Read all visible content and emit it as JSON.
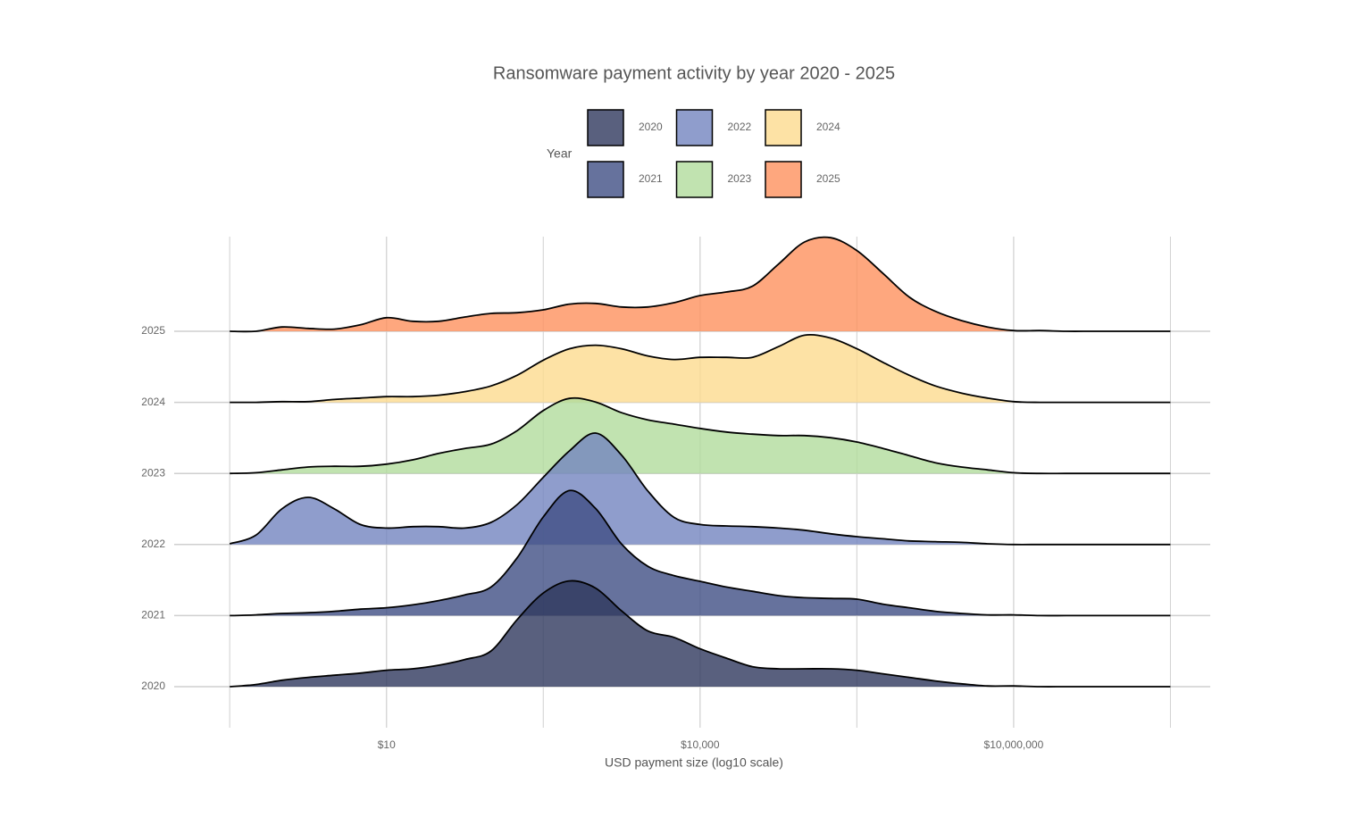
{
  "chart_data": {
    "type": "ridgeline",
    "title": "Ransomware payment activity by year 2020 - 2025",
    "xlabel": "USD payment size (log10 scale)",
    "legend_title": "Year",
    "x_log_scale": true,
    "grid": true,
    "opacity": 0.8,
    "xlim": [
      0.093,
      760000000
    ],
    "xticks": [
      {
        "value": 10,
        "label": "$10"
      },
      {
        "value": 10000,
        "label": "$10,000"
      },
      {
        "value": 10000000,
        "label": "$10,000,000"
      }
    ],
    "x_minor_ticks": [
      0.316,
      316,
      316228,
      316227766
    ],
    "categories": [
      "2020",
      "2021",
      "2022",
      "2023",
      "2024",
      "2025"
    ],
    "x": [
      0.316,
      0.562,
      1,
      1.78,
      3.16,
      5.62,
      10,
      17.8,
      31.6,
      56.2,
      100,
      178,
      316,
      562,
      1000,
      1778,
      3162,
      5623,
      10000,
      17783,
      31623,
      56234,
      100000,
      177828,
      316228,
      562341,
      1000000,
      1778279,
      3162278,
      5623413,
      10000000,
      17782794,
      31622777,
      56234133,
      100000000,
      177827941,
      316227766
    ],
    "series": [
      {
        "name": "2020",
        "color": "#2f385e",
        "values": [
          0,
          0.03,
          0.09,
          0.13,
          0.16,
          0.19,
          0.23,
          0.25,
          0.3,
          0.38,
          0.5,
          0.94,
          1.31,
          1.48,
          1.38,
          1.06,
          0.78,
          0.69,
          0.53,
          0.4,
          0.28,
          0.25,
          0.25,
          0.25,
          0.23,
          0.18,
          0.13,
          0.08,
          0.04,
          0.01,
          0.01,
          0,
          0,
          0,
          0,
          0,
          0
        ]
      },
      {
        "name": "2021",
        "color": "#404f85",
        "values": [
          0,
          0.01,
          0.03,
          0.04,
          0.06,
          0.09,
          0.11,
          0.15,
          0.21,
          0.29,
          0.4,
          0.81,
          1.38,
          1.75,
          1.5,
          1,
          0.69,
          0.56,
          0.48,
          0.4,
          0.34,
          0.28,
          0.25,
          0.24,
          0.23,
          0.16,
          0.11,
          0.06,
          0.03,
          0.01,
          0.01,
          0,
          0,
          0,
          0,
          0,
          0
        ]
      },
      {
        "name": "2022",
        "color": "#7385bf",
        "values": [
          0.01,
          0.13,
          0.5,
          0.66,
          0.5,
          0.28,
          0.23,
          0.25,
          0.25,
          0.23,
          0.31,
          0.56,
          0.94,
          1.31,
          1.56,
          1.25,
          0.75,
          0.38,
          0.28,
          0.26,
          0.25,
          0.23,
          0.2,
          0.15,
          0.11,
          0.08,
          0.05,
          0.04,
          0.03,
          0.01,
          0,
          0,
          0,
          0,
          0,
          0,
          0
        ]
      },
      {
        "name": "2023",
        "color": "#b2dc9c",
        "values": [
          0,
          0.01,
          0.05,
          0.09,
          0.1,
          0.1,
          0.13,
          0.19,
          0.28,
          0.35,
          0.41,
          0.6,
          0.88,
          1.05,
          1,
          0.85,
          0.75,
          0.69,
          0.63,
          0.58,
          0.55,
          0.53,
          0.53,
          0.5,
          0.44,
          0.35,
          0.25,
          0.15,
          0.09,
          0.05,
          0.01,
          0,
          0,
          0,
          0,
          0,
          0
        ]
      },
      {
        "name": "2024",
        "color": "#fddb8f",
        "values": [
          0,
          0,
          0.01,
          0.01,
          0.04,
          0.06,
          0.08,
          0.08,
          0.1,
          0.15,
          0.23,
          0.38,
          0.59,
          0.75,
          0.8,
          0.75,
          0.65,
          0.6,
          0.63,
          0.63,
          0.63,
          0.78,
          0.94,
          0.9,
          0.75,
          0.56,
          0.38,
          0.23,
          0.13,
          0.06,
          0.01,
          0,
          0,
          0,
          0,
          0,
          0
        ]
      },
      {
        "name": "2025",
        "color": "#fe915e",
        "values": [
          0,
          0,
          0.06,
          0.04,
          0.03,
          0.09,
          0.19,
          0.14,
          0.14,
          0.2,
          0.25,
          0.26,
          0.3,
          0.38,
          0.39,
          0.34,
          0.34,
          0.4,
          0.5,
          0.55,
          0.63,
          0.94,
          1.25,
          1.31,
          1.13,
          0.81,
          0.48,
          0.28,
          0.15,
          0.06,
          0.01,
          0.01,
          0,
          0,
          0,
          0,
          0
        ]
      }
    ]
  }
}
